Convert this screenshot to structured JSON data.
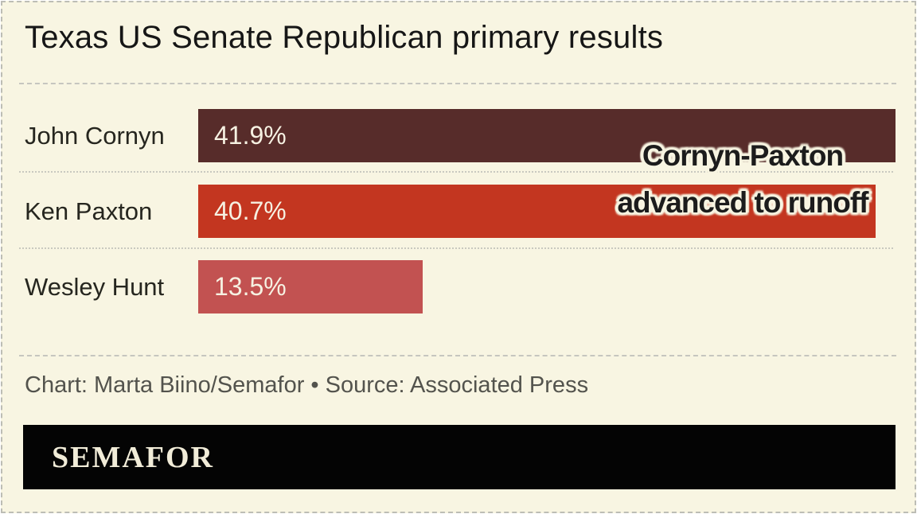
{
  "header": {
    "title": "Texas US Senate Republican primary results"
  },
  "chart_data": {
    "type": "bar",
    "orientation": "horizontal",
    "title": "Texas US Senate Republican primary results",
    "categories": [
      "John Cornyn",
      "Ken Paxton",
      "Wesley Hunt"
    ],
    "values": [
      41.9,
      40.7,
      13.5
    ],
    "value_labels": [
      "41.9%",
      "40.7%",
      "13.5%"
    ],
    "bar_colors": [
      "#572c2a",
      "#c33620",
      "#c25251"
    ],
    "xlim": [
      0,
      41.9
    ],
    "grid": "off",
    "annotation": {
      "line1": "Cornyn-Paxton",
      "line2": "advanced to runoff"
    }
  },
  "footer": {
    "credit": "Chart: Marta Biino/Semafor • Source: Associated Press",
    "logo": "SEMAFOR"
  },
  "colors": {
    "background": "#f8f5e2",
    "bar_dark": "#572c2a",
    "bar_red": "#c33620",
    "bar_salmon": "#c25251",
    "logo_bar": "#040404",
    "dash_border": "#bdbdb5"
  }
}
